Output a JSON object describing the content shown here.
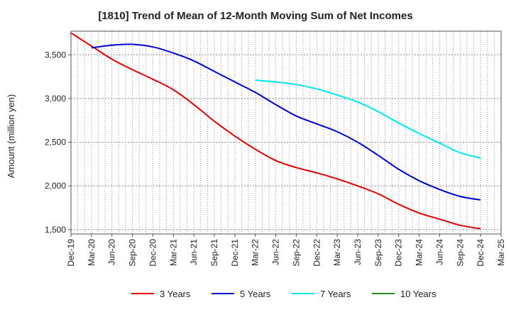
{
  "chart_data": {
    "type": "line",
    "title": "[1810]  Trend of Mean of 12-Month Moving Sum of Net Incomes",
    "xlabel": "",
    "ylabel": "Amount (million yen)",
    "ylim": [
      1450,
      3770
    ],
    "y_ticks": [
      1500,
      2000,
      2500,
      3000,
      3500
    ],
    "y_tick_labels": [
      "1,500",
      "2,000",
      "2,500",
      "3,000",
      "3,500"
    ],
    "x_tick_labels": [
      "Dec-19",
      "Mar-20",
      "Jun-20",
      "Sep-20",
      "Dec-20",
      "Mar-21",
      "Jun-21",
      "Sep-21",
      "Dec-21",
      "Mar-22",
      "Jun-22",
      "Sep-22",
      "Dec-22",
      "Mar-23",
      "Jun-23",
      "Sep-23",
      "Dec-23",
      "Mar-24",
      "Jun-24",
      "Sep-24",
      "Dec-24",
      "Mar-25"
    ],
    "grid": true,
    "legend_position": "bottom",
    "series": [
      {
        "name": "3 Years",
        "color": "#dd0000",
        "x": [
          "Dec-19",
          "Mar-20",
          "Jun-20",
          "Sep-20",
          "Dec-20",
          "Mar-21",
          "Jun-21",
          "Sep-21",
          "Dec-21",
          "Mar-22",
          "Jun-22",
          "Sep-22",
          "Dec-22",
          "Mar-23",
          "Jun-23",
          "Sep-23",
          "Dec-23",
          "Mar-24",
          "Jun-24",
          "Sep-24",
          "Dec-24"
        ],
        "values": [
          3750,
          3600,
          3450,
          3330,
          3220,
          3100,
          2930,
          2740,
          2570,
          2420,
          2290,
          2210,
          2150,
          2080,
          2000,
          1910,
          1790,
          1690,
          1620,
          1550,
          1510
        ]
      },
      {
        "name": "5 Years",
        "color": "#0000cc",
        "x": [
          "Mar-20",
          "Jun-20",
          "Sep-20",
          "Dec-20",
          "Mar-21",
          "Jun-21",
          "Sep-21",
          "Dec-21",
          "Mar-22",
          "Jun-22",
          "Sep-22",
          "Dec-22",
          "Mar-23",
          "Jun-23",
          "Sep-23",
          "Dec-23",
          "Mar-24",
          "Jun-24",
          "Sep-24",
          "Dec-24"
        ],
        "values": [
          3580,
          3610,
          3620,
          3590,
          3520,
          3430,
          3310,
          3190,
          3070,
          2930,
          2800,
          2710,
          2620,
          2500,
          2350,
          2190,
          2060,
          1960,
          1880,
          1840
        ]
      },
      {
        "name": "7 Years",
        "color": "#00e5ee",
        "x": [
          "Mar-22",
          "Jun-22",
          "Sep-22",
          "Dec-22",
          "Mar-23",
          "Jun-23",
          "Sep-23",
          "Dec-23",
          "Mar-24",
          "Jun-24",
          "Sep-24",
          "Dec-24"
        ],
        "values": [
          3210,
          3190,
          3160,
          3110,
          3040,
          2960,
          2850,
          2720,
          2600,
          2490,
          2380,
          2320
        ]
      },
      {
        "name": "10 Years",
        "color": "#228b22",
        "x": [],
        "values": []
      }
    ]
  }
}
